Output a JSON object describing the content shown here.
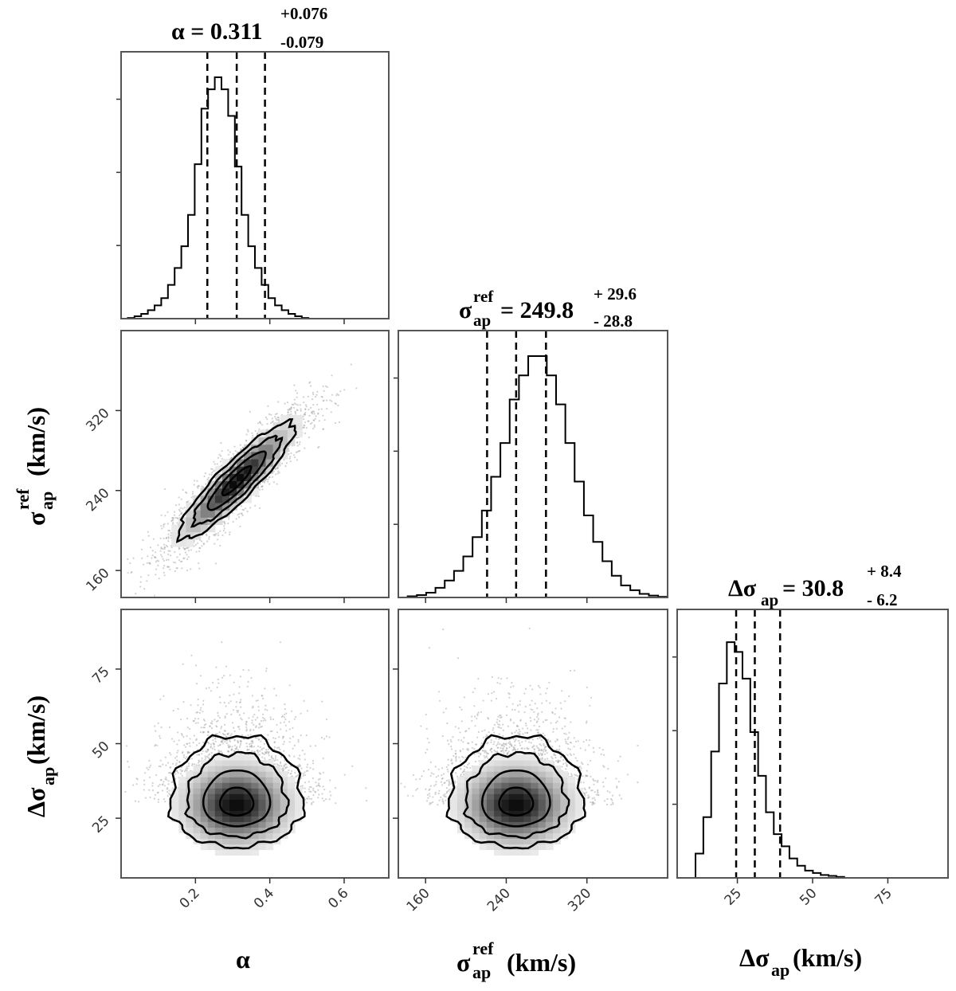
{
  "chart_data": {
    "type": "corner",
    "parameters": [
      {
        "key": "alpha",
        "tick_values": [
          0.2,
          0.4,
          0.6
        ],
        "tick_labels": [
          "0.2",
          "0.4",
          "0.6"
        ],
        "range": [
          0.0,
          0.72
        ]
      },
      {
        "key": "sigma_ref",
        "tick_values": [
          160,
          240,
          320
        ],
        "tick_labels": [
          "160",
          "240",
          "320"
        ],
        "range": [
          133,
          400
        ]
      },
      {
        "key": "delta_sigma",
        "tick_values": [
          25,
          50,
          75
        ],
        "tick_labels": [
          "25",
          "50",
          "75"
        ],
        "range": [
          5,
          95
        ]
      }
    ],
    "axis_labels": {
      "alpha": {
        "main": "α"
      },
      "sigma_ref": {
        "sym": "σ",
        "sup": "ref",
        "sub": "ap",
        "unit": " (km/s)"
      },
      "delta_sigma": {
        "sym": "Δσ",
        "sub": "ap",
        "unit": "(km/s)"
      }
    },
    "titles": {
      "alpha": {
        "lhs": "α = 0.311",
        "plus": "+0.076",
        "minus": "-0.079"
      },
      "sigma_ref": {
        "sym": "σ",
        "sup": "ref",
        "sub": "ap",
        "rhs": "= 249.8",
        "plus": "+ 29.6",
        "minus": "- 28.8"
      },
      "delta_sigma": {
        "sym": "Δσ",
        "sub": "ap",
        "rhs": "= 30.8",
        "plus": "+ 8.4",
        "minus": "- 6.2"
      }
    },
    "quantiles": {
      "alpha": [
        0.232,
        0.311,
        0.387
      ],
      "sigma_ref": [
        221.0,
        249.8,
        279.4
      ],
      "delta_sigma": [
        24.6,
        30.8,
        39.2
      ]
    },
    "histograms": {
      "alpha": {
        "bin_start": 0.0,
        "bin_width": 0.018,
        "counts": [
          0.0,
          0.003,
          0.01,
          0.02,
          0.035,
          0.055,
          0.085,
          0.14,
          0.21,
          0.3,
          0.43,
          0.64,
          0.87,
          0.95,
          1.0,
          0.95,
          0.84,
          0.63,
          0.43,
          0.3,
          0.21,
          0.14,
          0.085,
          0.055,
          0.035,
          0.02,
          0.01,
          0.003,
          0.0,
          0.0,
          0.0,
          0.0,
          0.0,
          0.0,
          0.0,
          0.0,
          0.0,
          0.0,
          0.0,
          0.0
        ]
      },
      "sigma_ref": {
        "bin_start": 133,
        "bin_width": 9.2,
        "counts": [
          0.0,
          0.005,
          0.01,
          0.02,
          0.04,
          0.07,
          0.11,
          0.17,
          0.25,
          0.36,
          0.5,
          0.64,
          0.82,
          0.92,
          1.0,
          1.0,
          0.92,
          0.8,
          0.64,
          0.48,
          0.34,
          0.23,
          0.15,
          0.09,
          0.05,
          0.03,
          0.015,
          0.008,
          0.003,
          0.0
        ]
      },
      "delta_sigma": {
        "bin_start": 8.5,
        "bin_width": 2.6,
        "counts": [
          0.0,
          0.1,
          0.25,
          0.52,
          0.8,
          0.97,
          0.93,
          0.82,
          0.6,
          0.42,
          0.27,
          0.18,
          0.13,
          0.08,
          0.05,
          0.03,
          0.02,
          0.012,
          0.008,
          0.004,
          0.0,
          0.0,
          0.0,
          0.0,
          0.0,
          0.0,
          0.0,
          0.0,
          0.0,
          0.0,
          0.0,
          0.0,
          0.0
        ]
      }
    },
    "density": {
      "sigma_ref_vs_alpha": {
        "center": [
          0.311,
          249.8
        ],
        "sd": [
          0.078,
          29.2
        ],
        "rho": 0.9
      },
      "delta_sigma_vs_alpha": {
        "center": [
          0.311,
          29.5
        ],
        "sd": [
          0.078,
          7.5
        ],
        "rho": 0.0
      },
      "delta_sigma_vs_sigma_ref": {
        "center": [
          249.8,
          29.5
        ],
        "sd": [
          29.2,
          7.5
        ],
        "rho": 0.0
      }
    },
    "contour_levels_sigma": [
      0.5,
      1.0,
      1.5,
      2.0
    ],
    "grid": false,
    "colors": {
      "line": "#000000",
      "points": "#9a9a9a",
      "frame": "#555555"
    }
  }
}
